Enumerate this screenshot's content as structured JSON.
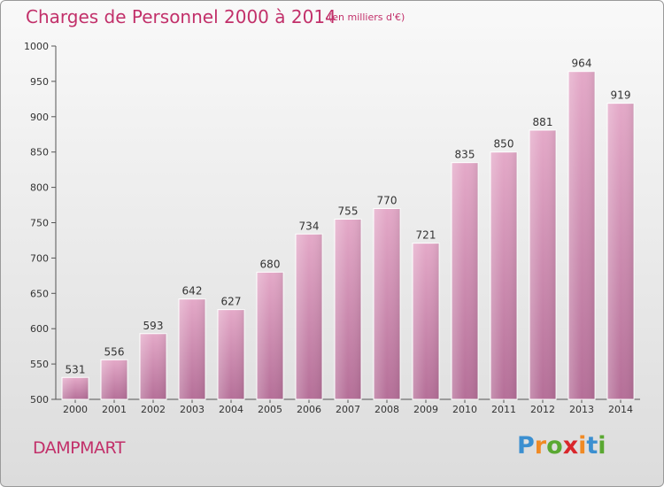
{
  "chart_data": {
    "type": "bar",
    "title": "Charges de Personnel 2000 à 2014",
    "subtitle": "(en milliers d'€)",
    "categories": [
      "2000",
      "2001",
      "2002",
      "2003",
      "2004",
      "2005",
      "2006",
      "2007",
      "2008",
      "2009",
      "2010",
      "2011",
      "2012",
      "2013",
      "2014"
    ],
    "values": [
      531,
      556,
      593,
      642,
      627,
      680,
      734,
      755,
      770,
      721,
      835,
      850,
      881,
      964,
      919
    ],
    "ylim": [
      500,
      1000
    ],
    "yticks": [
      500,
      550,
      600,
      650,
      700,
      750,
      800,
      850,
      900,
      950,
      1000
    ],
    "grid": false,
    "bar_color": "#d98bb4",
    "title_color": "#c2306a"
  },
  "footer": {
    "town": "DAMPMART",
    "logo_letters": [
      "P",
      "r",
      "o",
      "x",
      "i",
      "t",
      "i"
    ],
    "logo_colors": [
      "#3b8fd0",
      "#f08a24",
      "#5aa832",
      "#d9262b",
      "#f08a24",
      "#3b8fd0",
      "#5aa832"
    ]
  }
}
